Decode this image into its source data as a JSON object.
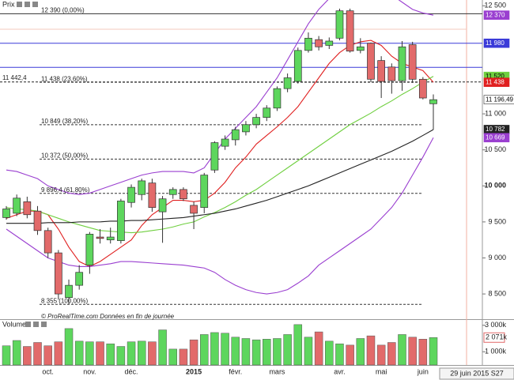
{
  "chart_data": {
    "type": "candlestick",
    "panel_title": "Prix",
    "volume_title": "Volume",
    "footnote": "© ProRealTime.com  Données en fin de journée",
    "date_box": "29 juin 2015 S27",
    "categories": [
      null,
      null,
      null,
      null,
      "oct.",
      null,
      null,
      null,
      "nov.",
      null,
      null,
      null,
      "déc.",
      null,
      null,
      null,
      null,
      null,
      "2015",
      null,
      null,
      null,
      "févr.",
      null,
      null,
      null,
      "mars",
      null,
      null,
      null,
      null,
      null,
      "avr.",
      null,
      null,
      null,
      "mai",
      null,
      null,
      null,
      "juin",
      null
    ],
    "open": [
      9560,
      9620,
      9780,
      9650,
      9380,
      9070,
      8450,
      8620,
      8900,
      9290,
      9250,
      9240,
      9770,
      9880,
      10040,
      9640,
      9880,
      9950,
      9730,
      9700,
      10220,
      10550,
      10640,
      10750,
      10850,
      10950,
      11080,
      11350,
      11450,
      11880,
      12030,
      11950,
      12050,
      12430,
      11880,
      11980,
      11740,
      11650,
      11460,
      11960,
      11480,
      11140
    ],
    "high": [
      9720,
      9880,
      9850,
      9720,
      9420,
      9110,
      8700,
      8900,
      9360,
      9400,
      9420,
      9820,
      10020,
      10100,
      10100,
      9860,
      9980,
      9980,
      9780,
      10180,
      10620,
      10700,
      10820,
      10900,
      11000,
      11120,
      11380,
      11560,
      11920,
      12130,
      12080,
      12060,
      12460,
      12460,
      12050,
      11990,
      11800,
      11700,
      12010,
      12000,
      11510,
      11270
    ],
    "low": [
      9530,
      9580,
      9550,
      9320,
      9000,
      8420,
      8360,
      8560,
      8780,
      9200,
      9200,
      9200,
      9700,
      9800,
      9640,
      9210,
      9820,
      9790,
      9400,
      9620,
      10180,
      10500,
      10560,
      10700,
      10800,
      10900,
      11040,
      11300,
      11420,
      11850,
      11880,
      11900,
      12020,
      11850,
      11840,
      11440,
      11220,
      11280,
      11320,
      11430,
      11200,
      10780
    ],
    "close": [
      9680,
      9830,
      9600,
      9380,
      9070,
      8500,
      8620,
      8800,
      9330,
      9270,
      9290,
      9790,
      9980,
      10070,
      9700,
      9820,
      9950,
      9820,
      9620,
      10150,
      10600,
      10650,
      10780,
      10850,
      10950,
      11080,
      11350,
      11500,
      11880,
      12050,
      11930,
      12010,
      12430,
      11870,
      11930,
      11480,
      11450,
      11460,
      11930,
      11480,
      11220,
      11196.49
    ],
    "up_color": "#5dd65d",
    "down_color": "#e26a6a",
    "lines": [
      {
        "color": "#e02020",
        "values": [
          9550,
          9600,
          9650,
          9650,
          9600,
          9400,
          9150,
          8950,
          8880,
          8950,
          9050,
          9150,
          9250,
          9450,
          9600,
          9700,
          9800,
          9800,
          9780,
          9800,
          9900,
          10050,
          10250,
          10400,
          10580,
          10700,
          10820,
          10950,
          11100,
          11300,
          11500,
          11700,
          11850,
          11950,
          12000,
          12020,
          11950,
          11800,
          11700,
          11650,
          11600,
          11438
        ]
      },
      {
        "color": "#6fcf3f",
        "values": [
          9700,
          9680,
          9670,
          9650,
          9600,
          9550,
          9500,
          9460,
          9420,
          9380,
          9370,
          9360,
          9350,
          9360,
          9380,
          9400,
          9430,
          9470,
          9500,
          9570,
          9630,
          9700,
          9780,
          9870,
          9950,
          10050,
          10150,
          10250,
          10350,
          10450,
          10550,
          10650,
          10750,
          10850,
          10930,
          11010,
          11100,
          11180,
          11270,
          11350,
          11440,
          11520
        ]
      },
      {
        "color": "#222222",
        "values": [
          9480,
          9480,
          9480,
          9480,
          9490,
          9490,
          9490,
          9500,
          9500,
          9500,
          9510,
          9510,
          9520,
          9520,
          9530,
          9540,
          9550,
          9560,
          9580,
          9600,
          9620,
          9650,
          9680,
          9720,
          9760,
          9800,
          9850,
          9900,
          9950,
          10000,
          10060,
          10120,
          10180,
          10240,
          10300,
          10360,
          10420,
          10480,
          10550,
          10620,
          10700,
          10782
        ]
      },
      {
        "color": "#9a3fd0",
        "values": [
          10220,
          10200,
          10150,
          10100,
          10000,
          9950,
          9900,
          9880,
          9900,
          9950,
          10000,
          10050,
          10100,
          10150,
          10180,
          10200,
          10200,
          10200,
          10180,
          10250,
          10450,
          10650,
          10800,
          10950,
          11100,
          11300,
          11500,
          11750,
          12000,
          12250,
          12450,
          12600,
          12700,
          12750,
          12750,
          12720,
          12700,
          12650,
          12550,
          12450,
          12400,
          12370
        ]
      },
      {
        "color": "#9a3fd0",
        "values": [
          9400,
          9300,
          9200,
          9100,
          9000,
          8950,
          8900,
          8880,
          8880,
          8900,
          8920,
          8950,
          8950,
          8940,
          8930,
          8920,
          8910,
          8900,
          8880,
          8860,
          8800,
          8700,
          8620,
          8560,
          8520,
          8500,
          8520,
          8560,
          8650,
          8750,
          8900,
          9000,
          9100,
          9200,
          9300,
          9400,
          9550,
          9700,
          9900,
          10150,
          10400,
          10669
        ]
      }
    ],
    "fibonacci": [
      {
        "value": 12390,
        "label": "12 390 (0,00%)"
      },
      {
        "value": 11438,
        "label": "11 438 (23,60%)"
      },
      {
        "value": 10849,
        "label": "10 849 (38,20%)"
      },
      {
        "value": 10372,
        "label": "10 372 (50,00%)"
      },
      {
        "value": 9896.4,
        "label": "9 896,4 (61,80%)"
      },
      {
        "value": 8355,
        "label": "8 355 (100,00%)"
      }
    ],
    "levels": [
      {
        "value": 11980,
        "color": "#3a3ad8"
      },
      {
        "value": 11645,
        "color": "#3a3ad8"
      },
      {
        "value": 11442.4,
        "color": "#222222",
        "label": "11 442,4"
      }
    ],
    "price_markers": [
      {
        "value": 12370,
        "label": "12 370",
        "color": "#9a3fd0"
      },
      {
        "value": 11980,
        "label": "11 980",
        "color": "#3a3ad8"
      },
      {
        "value": 11520,
        "label": "11 520",
        "color": "#6fcf3f"
      },
      {
        "value": 11438,
        "label": "11 438",
        "color": "#e02020"
      },
      {
        "value": 11196.49,
        "label": "11 196,49",
        "color": "#ffffff"
      },
      {
        "value": 10782,
        "label": "10 782",
        "color": "#222222"
      },
      {
        "value": 10669,
        "label": "10 669",
        "color": "#9a3fd0"
      }
    ],
    "ylim": [
      8150,
      12580
    ],
    "yticks": [
      {
        "value": 12500,
        "label": "12 500"
      },
      {
        "value": 11000,
        "label": "11 000"
      },
      {
        "value": 10500,
        "label": "10 500"
      },
      {
        "value": 10000,
        "label": "10 000"
      },
      {
        "value": 9500,
        "label": "9 500"
      },
      {
        "value": 9000,
        "label": "9 000"
      },
      {
        "value": 8500,
        "label": "8 500"
      }
    ],
    "volume": {
      "values": [
        1450,
        1850,
        1400,
        1700,
        1450,
        1750,
        2750,
        1800,
        1750,
        1750,
        1600,
        1400,
        1750,
        1800,
        1750,
        2650,
        1200,
        1200,
        1900,
        2300,
        2450,
        2400,
        2100,
        2000,
        1900,
        1950,
        2000,
        2300,
        3050,
        2100,
        2500,
        1800,
        1600,
        1500,
        2000,
        2200,
        1500,
        1700,
        2300,
        2100,
        1950,
        2071
      ],
      "ylim": [
        0,
        3400
      ],
      "yticks": [
        {
          "value": 3000,
          "label": "3 000k"
        },
        {
          "value": 1000,
          "label": "1 000k"
        }
      ],
      "marker": {
        "value": 2071,
        "label": "2 071k"
      }
    }
  }
}
